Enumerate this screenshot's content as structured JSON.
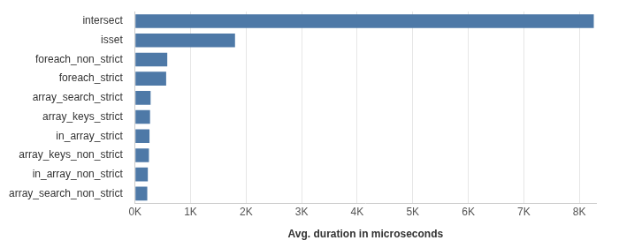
{
  "chart_data": {
    "type": "bar",
    "orientation": "horizontal",
    "x_label": "Avg. duration in microseconds",
    "categories": [
      "intersect",
      "isset",
      "foreach_non_strict",
      "foreach_strict",
      "array_search_strict",
      "array_keys_strict",
      "in_array_strict",
      "array_keys_non_strict",
      "in_array_non_strict",
      "array_search_non_strict"
    ],
    "values": [
      8260,
      1800,
      580,
      560,
      280,
      270,
      260,
      250,
      230,
      220
    ],
    "color": "#4e79a7",
    "xlim": [
      0,
      8300
    ],
    "xticks": [
      {
        "value": 0,
        "label": "0K"
      },
      {
        "value": 1000,
        "label": "1K"
      },
      {
        "value": 2000,
        "label": "2K"
      },
      {
        "value": 3000,
        "label": "3K"
      },
      {
        "value": 4000,
        "label": "4K"
      },
      {
        "value": 5000,
        "label": "5K"
      },
      {
        "value": 6000,
        "label": "6K"
      },
      {
        "value": 7000,
        "label": "7K"
      },
      {
        "value": 8000,
        "label": "8K"
      }
    ],
    "grid": true
  }
}
